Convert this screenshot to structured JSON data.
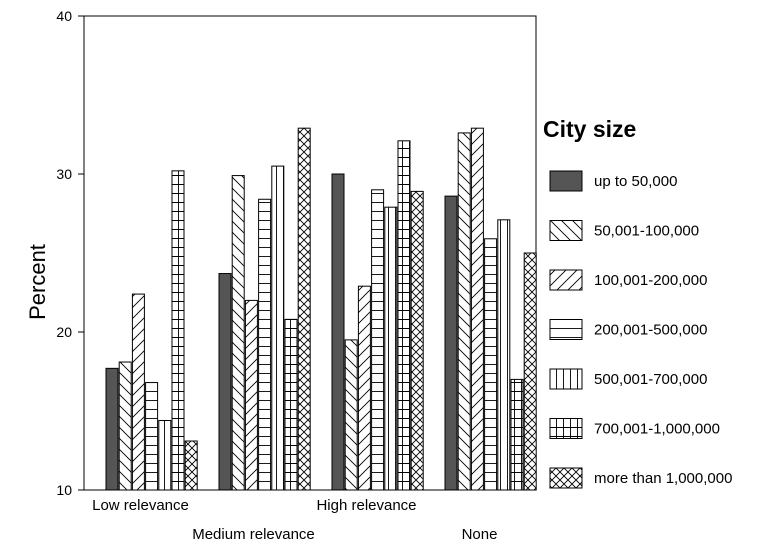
{
  "chart_data": {
    "type": "bar",
    "title": "",
    "xlabel": "",
    "ylabel": "Percent",
    "ylim": [
      10,
      40
    ],
    "yticks": [
      10,
      20,
      30,
      40
    ],
    "grid": false,
    "legend_position": "right",
    "legend_title": "City size",
    "categories": [
      "Low relevance",
      "Medium relevance",
      "High relevance",
      "None"
    ],
    "series": [
      {
        "name": "up to 50,000",
        "pattern": "solid",
        "values": [
          17.7,
          23.7,
          30.0,
          28.6
        ]
      },
      {
        "name": "50,001-100,000",
        "pattern": "diag-down",
        "values": [
          18.1,
          29.9,
          19.5,
          32.6
        ]
      },
      {
        "name": "100,001-200,000",
        "pattern": "diag-up",
        "values": [
          22.4,
          22.0,
          22.9,
          32.9
        ]
      },
      {
        "name": "200,001-500,000",
        "pattern": "horiz",
        "values": [
          16.8,
          28.4,
          29.0,
          25.9
        ]
      },
      {
        "name": "500,001-700,000",
        "pattern": "vert",
        "values": [
          14.4,
          30.5,
          27.9,
          27.1
        ]
      },
      {
        "name": "700,001-1,000,000",
        "pattern": "grid",
        "values": [
          30.2,
          20.8,
          32.1,
          17.0
        ]
      },
      {
        "name": "more than 1,000,000",
        "pattern": "cross",
        "values": [
          13.1,
          32.9,
          28.9,
          25.0
        ]
      }
    ]
  }
}
